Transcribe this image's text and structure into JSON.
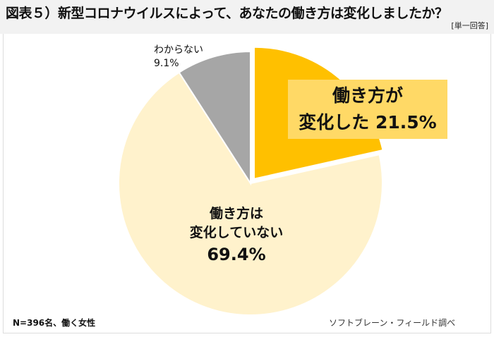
{
  "chart_data": {
    "type": "pie",
    "title": "図表５）新型コロナウイルスによって、あなたの働き方は変化しましたか？",
    "subtitle": "[単一回答]",
    "slices": [
      {
        "label_lines": [
          "働き方が",
          "変化した 21.5%"
        ],
        "value": 21.5,
        "color": "#FFC000",
        "exploded": true
      },
      {
        "label_lines": [
          "働き方は",
          "変化していない",
          "69.4%"
        ],
        "value": 69.4,
        "color": "#FFF2CC",
        "exploded": false
      },
      {
        "label_lines": [
          "わからない",
          "9.1%"
        ],
        "value": 9.1,
        "color": "#A6A6A6",
        "exploded": false
      }
    ],
    "start_angle": "top, clockwise"
  },
  "footer": {
    "sample": "N=396名、働く女性",
    "source": "ソフトブレーン・フィールド調べ"
  },
  "label_box_color": "#FFD966"
}
